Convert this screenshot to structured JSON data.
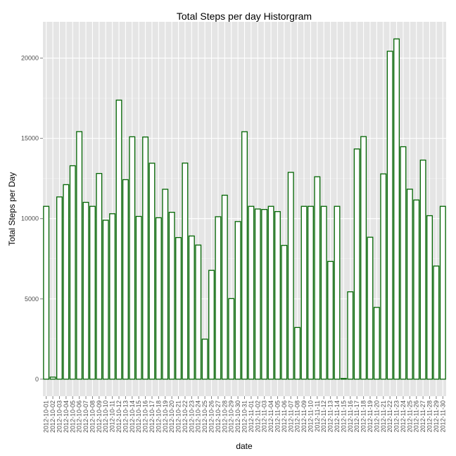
{
  "colors": {
    "panel": "#e5e5e5",
    "grid_major": "#ffffff",
    "grid_minor": "#f2f2f2",
    "bar_fill": "#ffffff",
    "bar_stroke": "#006400",
    "tick_text": "#4d4d4d"
  },
  "chart_data": {
    "type": "bar",
    "title": "Total Steps per day Historgram",
    "xlabel": "date",
    "ylabel": "Total Steps per Day",
    "ylim": [
      -1060,
      22260
    ],
    "yticks": [
      0,
      5000,
      10000,
      15000,
      20000
    ],
    "ytick_labels": [
      "0",
      "5000",
      "10000",
      "15000",
      "20000"
    ],
    "grid": true,
    "categories": [
      "2012-10-01",
      "2012-10-02",
      "2012-10-03",
      "2012-10-04",
      "2012-10-05",
      "2012-10-06",
      "2012-10-07",
      "2012-10-08",
      "2012-10-09",
      "2012-10-10",
      "2012-10-11",
      "2012-10-12",
      "2012-10-13",
      "2012-10-14",
      "2012-10-15",
      "2012-10-16",
      "2012-10-17",
      "2012-10-18",
      "2012-10-19",
      "2012-10-20",
      "2012-10-21",
      "2012-10-22",
      "2012-10-23",
      "2012-10-24",
      "2012-10-25",
      "2012-10-26",
      "2012-10-27",
      "2012-10-28",
      "2012-10-29",
      "2012-10-30",
      "2012-10-31",
      "2012-11-01",
      "2012-11-02",
      "2012-11-03",
      "2012-11-04",
      "2012-11-05",
      "2012-11-06",
      "2012-11-07",
      "2012-11-08",
      "2012-11-09",
      "2012-11-10",
      "2012-11-11",
      "2012-11-12",
      "2012-11-13",
      "2012-11-14",
      "2012-11-15",
      "2012-11-16",
      "2012-11-17",
      "2012-11-18",
      "2012-11-19",
      "2012-11-20",
      "2012-11-21",
      "2012-11-22",
      "2012-11-23",
      "2012-11-24",
      "2012-11-25",
      "2012-11-26",
      "2012-11-27",
      "2012-11-28",
      "2012-11-29",
      "2012-11-30"
    ],
    "values": [
      10766,
      126,
      11352,
      12116,
      13294,
      15420,
      11015,
      10766,
      12811,
      9900,
      10304,
      17382,
      12426,
      15098,
      10139,
      15084,
      13452,
      10056,
      11829,
      10395,
      8821,
      13460,
      8918,
      8355,
      2492,
      6778,
      10119,
      11458,
      5018,
      9819,
      15414,
      10766,
      10600,
      10571,
      10766,
      10439,
      8334,
      12883,
      3219,
      10766,
      10766,
      12608,
      10765,
      7336,
      10766,
      41,
      5441,
      14339,
      15110,
      8841,
      4472,
      12787,
      20427,
      21194,
      14478,
      11834,
      11162,
      13646,
      10183,
      7047,
      10766
    ]
  }
}
